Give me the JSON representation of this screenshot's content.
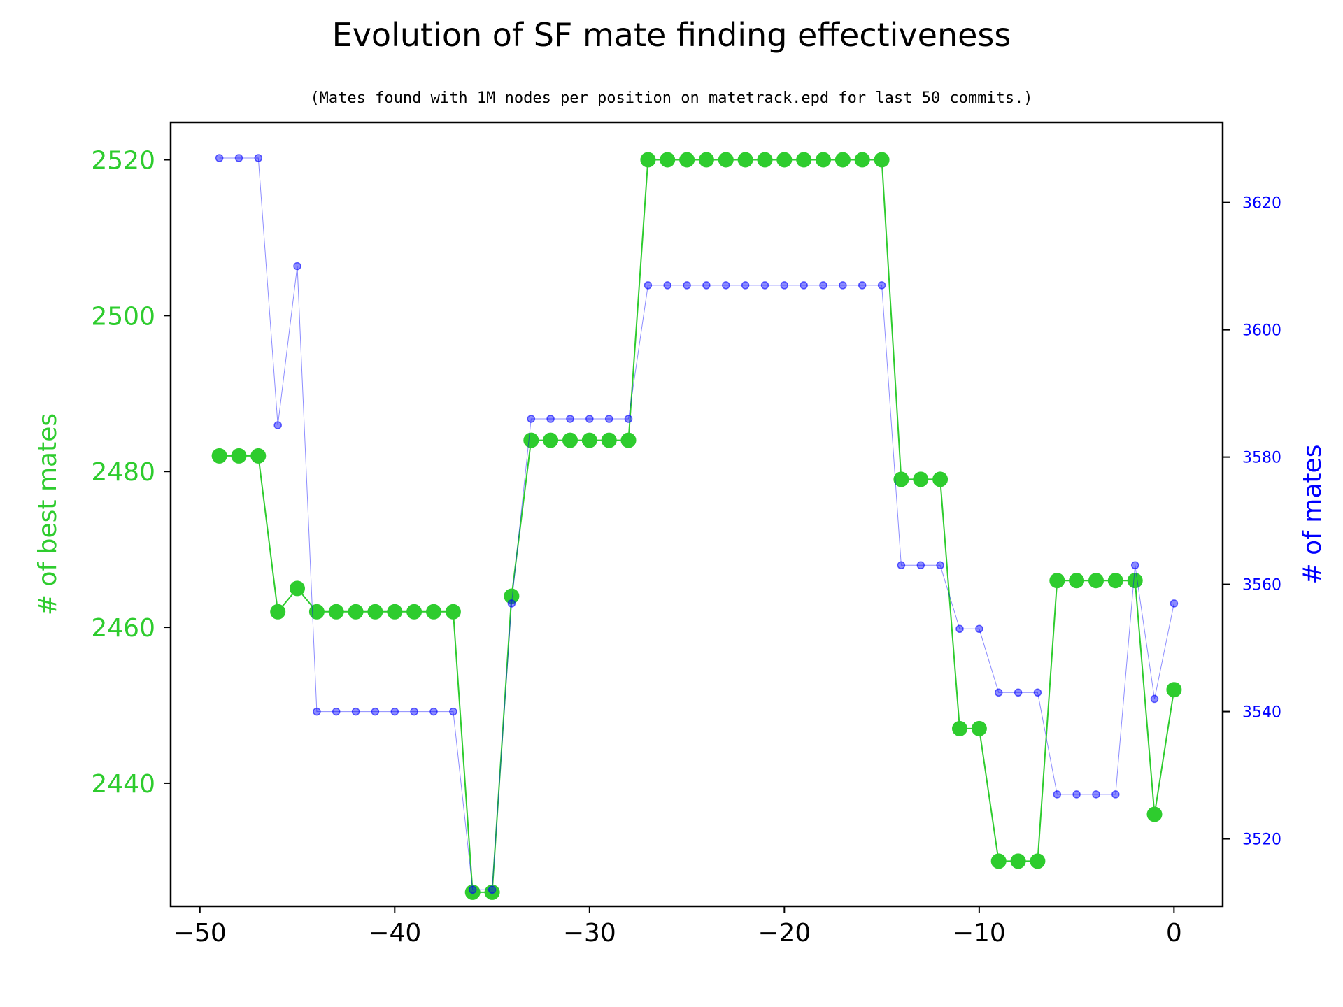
{
  "chart_data": {
    "type": "line",
    "title": "Evolution of SF mate finding effectiveness",
    "subtitle": "(Mates found with 1M nodes per position on matetrack.epd for last 50 commits.)",
    "xlabel": "",
    "x": [
      -49,
      -48,
      -47,
      -46,
      -45,
      -44,
      -43,
      -42,
      -41,
      -40,
      -39,
      -38,
      -37,
      -36,
      -35,
      -34,
      -33,
      -32,
      -31,
      -30,
      -29,
      -28,
      -27,
      -26,
      -25,
      -24,
      -23,
      -22,
      -21,
      -20,
      -19,
      -18,
      -17,
      -16,
      -15,
      -14,
      -13,
      -12,
      -11,
      -10,
      -9,
      -8,
      -7,
      -6,
      -5,
      -4,
      -3,
      -2,
      -1,
      0
    ],
    "xlim": [
      -51.5,
      2.5
    ],
    "xticks": [
      -50,
      -40,
      -30,
      -20,
      -10,
      0
    ],
    "xtick_labels": [
      "−50",
      "−40",
      "−30",
      "−20",
      "−10",
      "0"
    ],
    "series": [
      {
        "name": "# of best mates",
        "axis": "left",
        "color": "#2ecc2e",
        "values": [
          2482,
          2482,
          2482,
          2462,
          2465,
          2462,
          2462,
          2462,
          2462,
          2462,
          2462,
          2462,
          2462,
          2426,
          2426,
          2464,
          2484,
          2484,
          2484,
          2484,
          2484,
          2484,
          2520,
          2520,
          2520,
          2520,
          2520,
          2520,
          2520,
          2520,
          2520,
          2520,
          2520,
          2520,
          2520,
          2479,
          2479,
          2479,
          2447,
          2447,
          2430,
          2430,
          2430,
          2466,
          2466,
          2466,
          2466,
          2466,
          2436,
          2452
        ]
      },
      {
        "name": "# of mates",
        "axis": "right",
        "color": "#0000ff",
        "values": [
          3627,
          3627,
          3627,
          3585,
          3610,
          3540,
          3540,
          3540,
          3540,
          3540,
          3540,
          3540,
          3540,
          3512,
          3512,
          3557,
          3586,
          3586,
          3586,
          3586,
          3586,
          3586,
          3607,
          3607,
          3607,
          3607,
          3607,
          3607,
          3607,
          3607,
          3607,
          3607,
          3607,
          3607,
          3607,
          3563,
          3563,
          3563,
          3553,
          3553,
          3543,
          3543,
          3543,
          3527,
          3527,
          3527,
          3527,
          3563,
          3542,
          3557
        ]
      }
    ],
    "y_left": {
      "label": "# of best mates",
      "color": "#2ecc2e",
      "lim": [
        2424.2,
        2524.8
      ],
      "ticks": [
        2440,
        2460,
        2480,
        2500,
        2520
      ]
    },
    "y_right": {
      "label": "# of mates",
      "color": "#0000ff",
      "lim": [
        3509.4,
        3632.6
      ],
      "ticks": [
        3520,
        3540,
        3560,
        3580,
        3600,
        3620
      ]
    },
    "grid": false,
    "legend": "none"
  }
}
